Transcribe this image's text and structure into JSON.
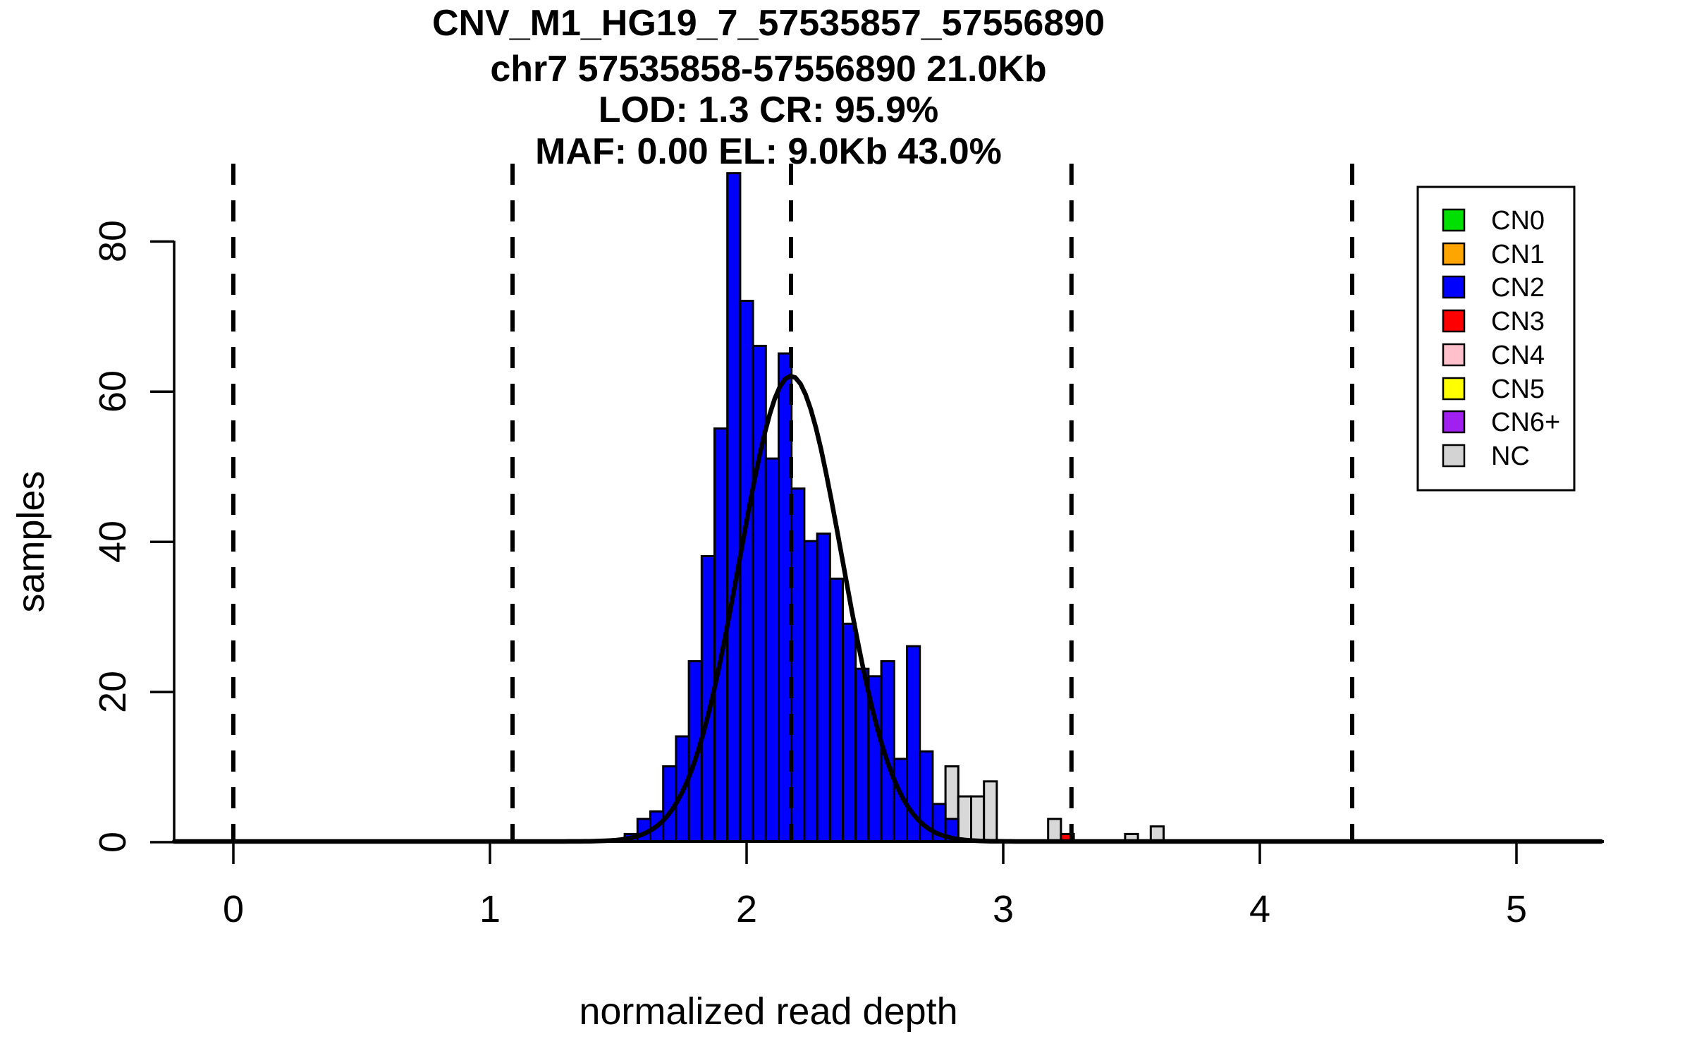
{
  "title": {
    "line1": "CNV_M1_HG19_7_57535857_57556890",
    "line2": "chr7 57535858-57556890 21.0Kb",
    "line3": "LOD: 1.3 CR: 95.9%",
    "line4": "MAF: 0.00 EL: 9.0Kb 43.0%"
  },
  "axes": {
    "x_label": "normalized read depth",
    "y_label": "samples",
    "x_ticks": [
      "0",
      "1",
      "2",
      "3",
      "4",
      "5"
    ],
    "y_ticks": [
      "0",
      "20",
      "40",
      "60",
      "80"
    ]
  },
  "legend": {
    "items": [
      {
        "label": "CN0",
        "color": "#00E000"
      },
      {
        "label": "CN1",
        "color": "#FFA500"
      },
      {
        "label": "CN2",
        "color": "#0000FF"
      },
      {
        "label": "CN3",
        "color": "#FF0000"
      },
      {
        "label": "CN4",
        "color": "#FFC0CB"
      },
      {
        "label": "CN5",
        "color": "#FFFF00"
      },
      {
        "label": "CN6+",
        "color": "#A020F0"
      },
      {
        "label": "NC",
        "color": "#D3D3D3"
      }
    ]
  },
  "chart_data": {
    "type": "bar",
    "subtype": "overlaid-histogram",
    "title": "CNV_M1_HG19_7_57535857_57556890 / chr7 57535858-57556890 21.0Kb / LOD: 1.3 CR: 95.9% / MAF: 0.00 EL: 9.0Kb 43.0%",
    "xlabel": "normalized read depth",
    "ylabel": "samples",
    "xlim": [
      -0.23,
      5.34
    ],
    "ylim": [
      0,
      90
    ],
    "x_tick_values": [
      0,
      1,
      2,
      3,
      4,
      5
    ],
    "y_tick_values": [
      0,
      20,
      40,
      60,
      80
    ],
    "grid": false,
    "legend_position": "top-right",
    "bin_width": 0.05,
    "dashed_vertical_lines": [
      0,
      1.088,
      2.173,
      3.266,
      4.36
    ],
    "series": [
      {
        "name": "NC",
        "color": "#D8D8D8",
        "bars": [
          {
            "x": 2.775,
            "h": 10
          },
          {
            "x": 2.825,
            "h": 6
          },
          {
            "x": 2.875,
            "h": 6
          },
          {
            "x": 2.925,
            "h": 8
          },
          {
            "x": 3.175,
            "h": 3
          },
          {
            "x": 3.475,
            "h": 1
          },
          {
            "x": 3.575,
            "h": 2
          }
        ]
      },
      {
        "name": "CN3",
        "color": "#FF0000",
        "bars": [
          {
            "x": 3.225,
            "h": 1
          }
        ]
      },
      {
        "name": "CN2",
        "color": "#0000FF",
        "bars": [
          {
            "x": 1.525,
            "h": 1
          },
          {
            "x": 1.575,
            "h": 3
          },
          {
            "x": 1.625,
            "h": 4
          },
          {
            "x": 1.675,
            "h": 10
          },
          {
            "x": 1.725,
            "h": 14
          },
          {
            "x": 1.775,
            "h": 24
          },
          {
            "x": 1.825,
            "h": 38
          },
          {
            "x": 1.875,
            "h": 55
          },
          {
            "x": 1.925,
            "h": 89
          },
          {
            "x": 1.975,
            "h": 72
          },
          {
            "x": 2.025,
            "h": 66
          },
          {
            "x": 2.075,
            "h": 51
          },
          {
            "x": 2.125,
            "h": 65
          },
          {
            "x": 2.175,
            "h": 47
          },
          {
            "x": 2.225,
            "h": 40
          },
          {
            "x": 2.275,
            "h": 41
          },
          {
            "x": 2.325,
            "h": 35
          },
          {
            "x": 2.375,
            "h": 29
          },
          {
            "x": 2.425,
            "h": 23
          },
          {
            "x": 2.475,
            "h": 22
          },
          {
            "x": 2.525,
            "h": 24
          },
          {
            "x": 2.575,
            "h": 11
          },
          {
            "x": 2.625,
            "h": 26
          },
          {
            "x": 2.675,
            "h": 12
          },
          {
            "x": 2.725,
            "h": 5
          },
          {
            "x": 2.775,
            "h": 3
          }
        ]
      }
    ],
    "fit_curve": {
      "shape": "gaussian",
      "mean": 2.173,
      "sd": 0.2,
      "peak": 62
    }
  }
}
